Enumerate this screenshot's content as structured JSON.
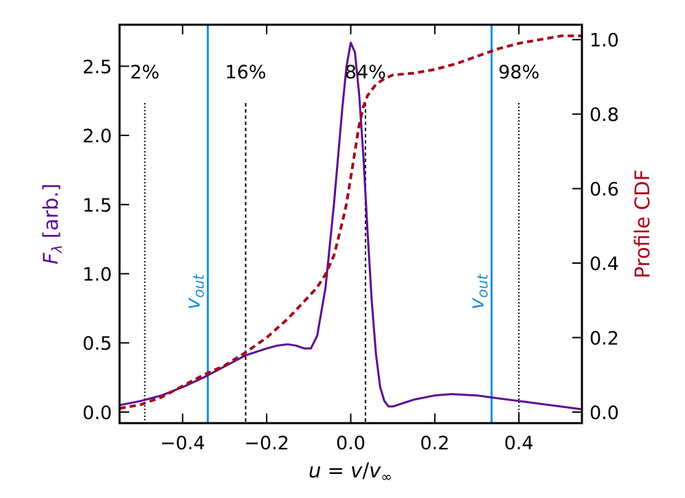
{
  "chart_data": {
    "type": "line",
    "xlabel_parts": {
      "u": "u",
      "eq1": " = ",
      "v": "v",
      "slash": "/",
      "vinf": "v",
      "inf_sub": "∞"
    },
    "ylabel_left_parts": {
      "F": "F",
      "sub": "λ",
      "rest": " [arb.]"
    },
    "ylabel_right": "Profile CDF",
    "colors": {
      "flux": "#5b0a91",
      "cdf": "#a8071a",
      "vout": "#1a8fe3",
      "percentile": "#000000"
    },
    "xlim": [
      -0.55,
      0.55
    ],
    "ylim_left": [
      -0.08,
      2.8
    ],
    "ylim_right": [
      -0.0297,
      1.04
    ],
    "x_ticks": [
      {
        "value": -0.4,
        "label": "−0.4"
      },
      {
        "value": -0.2,
        "label": "−0.2"
      },
      {
        "value": 0.0,
        "label": "0.0"
      },
      {
        "value": 0.2,
        "label": "0.2"
      },
      {
        "value": 0.4,
        "label": "0.4"
      }
    ],
    "y_left_ticks": [
      {
        "value": 0.0,
        "label": "0.0"
      },
      {
        "value": 0.5,
        "label": "0.5"
      },
      {
        "value": 1.0,
        "label": "1.0"
      },
      {
        "value": 1.5,
        "label": "1.5"
      },
      {
        "value": 2.0,
        "label": "2.0"
      },
      {
        "value": 2.5,
        "label": "2.5"
      }
    ],
    "y_right_ticks": [
      {
        "value": 0.0,
        "label": "0.0"
      },
      {
        "value": 0.2,
        "label": "0.2"
      },
      {
        "value": 0.4,
        "label": "0.4"
      },
      {
        "value": 0.6,
        "label": "0.6"
      },
      {
        "value": 0.8,
        "label": "0.8"
      },
      {
        "value": 1.0,
        "label": "1.0"
      }
    ],
    "series": [
      {
        "name": "F_lambda",
        "axis": "left",
        "style": "solid",
        "x": [
          -0.55,
          -0.5,
          -0.45,
          -0.4,
          -0.35,
          -0.3,
          -0.25,
          -0.2,
          -0.175,
          -0.15,
          -0.13,
          -0.11,
          -0.095,
          -0.08,
          -0.06,
          -0.04,
          -0.02,
          -0.01,
          0.0,
          0.01,
          0.02,
          0.03,
          0.04,
          0.05,
          0.06,
          0.07,
          0.08,
          0.09,
          0.1,
          0.12,
          0.15,
          0.2,
          0.24,
          0.3,
          0.35,
          0.4,
          0.45,
          0.5,
          0.55
        ],
        "y": [
          0.05,
          0.08,
          0.12,
          0.18,
          0.25,
          0.33,
          0.41,
          0.46,
          0.48,
          0.49,
          0.48,
          0.46,
          0.46,
          0.55,
          0.9,
          1.5,
          2.2,
          2.5,
          2.67,
          2.6,
          2.3,
          1.85,
          1.3,
          0.8,
          0.42,
          0.18,
          0.08,
          0.04,
          0.04,
          0.06,
          0.09,
          0.12,
          0.13,
          0.12,
          0.1,
          0.08,
          0.06,
          0.04,
          0.02
        ]
      },
      {
        "name": "Profile CDF",
        "axis": "right",
        "style": "dashed",
        "x": [
          -0.55,
          -0.5,
          -0.45,
          -0.4,
          -0.35,
          -0.3,
          -0.25,
          -0.2,
          -0.15,
          -0.1,
          -0.08,
          -0.06,
          -0.04,
          -0.02,
          -0.01,
          0.0,
          0.01,
          0.02,
          0.03,
          0.04,
          0.05,
          0.06,
          0.08,
          0.1,
          0.15,
          0.2,
          0.25,
          0.3,
          0.35,
          0.4,
          0.45,
          0.5,
          0.55
        ],
        "y": [
          0.01,
          0.02,
          0.04,
          0.07,
          0.1,
          0.125,
          0.16,
          0.2,
          0.25,
          0.31,
          0.335,
          0.37,
          0.42,
          0.51,
          0.56,
          0.63,
          0.7,
          0.77,
          0.82,
          0.85,
          0.865,
          0.88,
          0.895,
          0.905,
          0.91,
          0.92,
          0.935,
          0.955,
          0.975,
          0.99,
          1.0,
          1.01,
          1.01
        ]
      }
    ],
    "vout_lines": [
      {
        "x": -0.34,
        "label": "v",
        "sub": "out"
      },
      {
        "x": 0.335,
        "label": "v",
        "sub": "out"
      }
    ],
    "percentile_lines": [
      {
        "x": -0.49,
        "label": "2%",
        "style": "dotted"
      },
      {
        "x": -0.25,
        "label": "16%",
        "style": "dashed"
      },
      {
        "x": 0.035,
        "label": "84%",
        "style": "dashed"
      },
      {
        "x": 0.4,
        "label": "98%",
        "style": "dotted"
      }
    ]
  }
}
